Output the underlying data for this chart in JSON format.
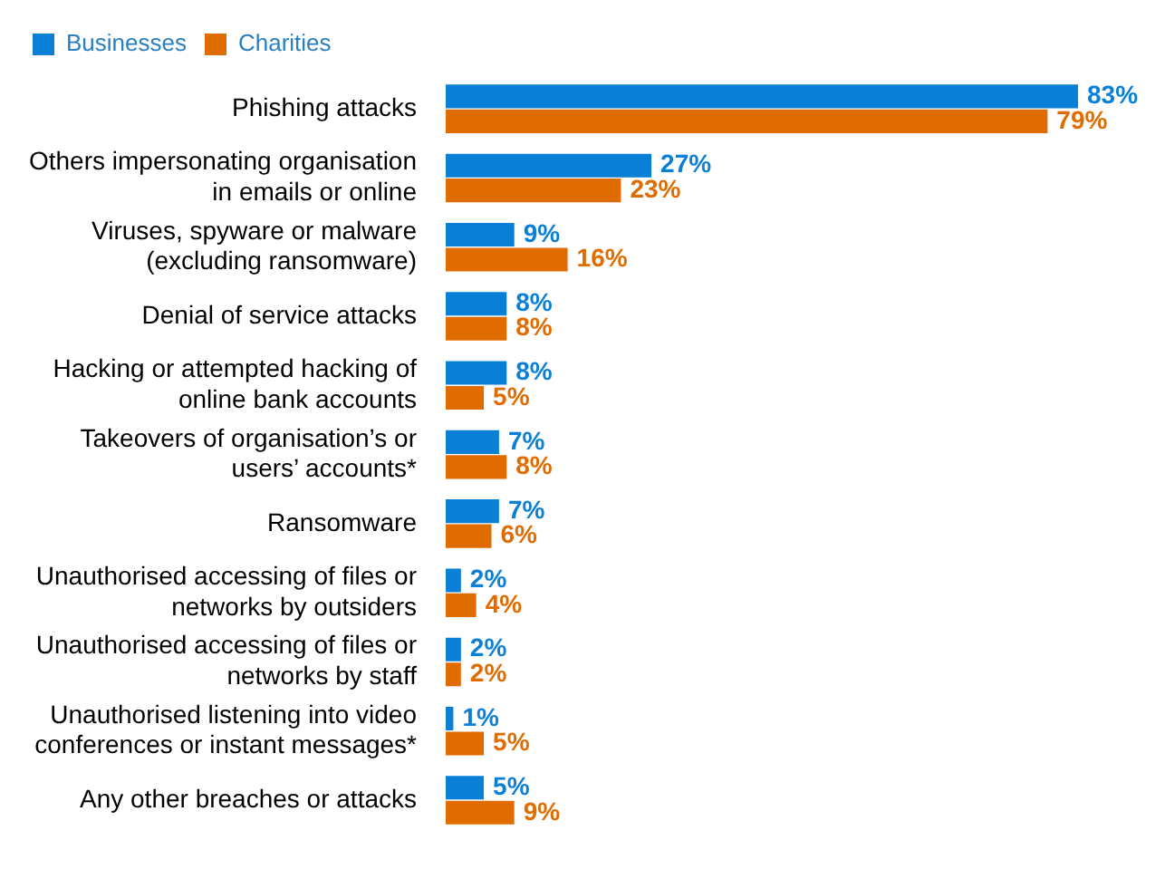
{
  "chart_data": {
    "type": "bar",
    "orientation": "horizontal",
    "legend": "top left",
    "data_labels": true,
    "categories": [
      "Phishing attacks",
      "Others impersonating organisation in emails or online",
      "Viruses, spyware or malware (excluding ransomware)",
      "Denial of service attacks",
      "Hacking or attempted hacking of online bank accounts",
      "Takeovers of organisation’s or users’ accounts*",
      "Ransomware",
      "Unauthorised accessing of files or networks by outsiders",
      "Unauthorised accessing of files or networks by staff",
      "Unauthorised listening into video conferences or instant messages*",
      "Any other breaches or attacks"
    ],
    "series": [
      {
        "name": "Businesses",
        "color": "#0a7fd6",
        "values": [
          83,
          27,
          9,
          8,
          8,
          7,
          7,
          2,
          2,
          1,
          5
        ],
        "value_labels": [
          "83%",
          "27%",
          "9%",
          "8%",
          "8%",
          "7%",
          "7%",
          "2%",
          "2%",
          "1%",
          "5%"
        ]
      },
      {
        "name": "Charities",
        "color": "#e06c00",
        "values": [
          79,
          23,
          16,
          8,
          5,
          8,
          6,
          4,
          2,
          5,
          9
        ],
        "value_labels": [
          "79%",
          "23%",
          "16%",
          "8%",
          "5%",
          "8%",
          "6%",
          "4%",
          "2%",
          "5%",
          "9%"
        ]
      }
    ]
  }
}
